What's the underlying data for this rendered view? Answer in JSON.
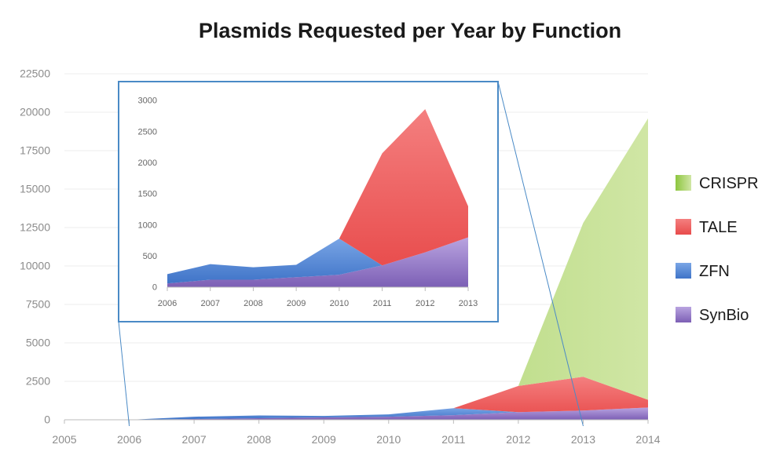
{
  "chart_data": [
    {
      "type": "area",
      "title": "Plasmids Requested per Year by Function",
      "stacked": true,
      "x": [
        "2005",
        "2006",
        "2007",
        "2008",
        "2009",
        "2010",
        "2011",
        "2012",
        "2013",
        "2014"
      ],
      "ylim": [
        0,
        22500
      ],
      "yticks": [
        "0",
        "2500",
        "5000",
        "7500",
        "10000",
        "12500",
        "15000",
        "17500",
        "20000",
        "22500"
      ],
      "legend_position": "right",
      "series": [
        {
          "name": "SynBio",
          "color": "#9b7fc8",
          "values": [
            0,
            0,
            50,
            100,
            150,
            200,
            300,
            500,
            600,
            800
          ]
        },
        {
          "name": "ZFN",
          "color": "#5b8fd8",
          "values": [
            0,
            0,
            150,
            180,
            100,
            150,
            450,
            0,
            0,
            0
          ]
        },
        {
          "name": "TALE",
          "color": "#ef6b6b",
          "values": [
            0,
            0,
            0,
            0,
            0,
            0,
            0,
            1700,
            2200,
            500
          ]
        },
        {
          "name": "CRISPR",
          "color": "#a6cf5a",
          "values": [
            0,
            0,
            0,
            0,
            0,
            0,
            0,
            0,
            10000,
            18300
          ]
        }
      ]
    },
    {
      "type": "area",
      "inset": true,
      "x": [
        "2006",
        "2007",
        "2008",
        "2009",
        "2010",
        "2011",
        "2012",
        "2013"
      ],
      "ylim": [
        0,
        3000
      ],
      "yticks": [
        "0",
        "500",
        "1000",
        "1500",
        "2000",
        "2500",
        "3000"
      ],
      "series": [
        {
          "name": "SynBio",
          "values": [
            60,
            120,
            120,
            160,
            200,
            350,
            560,
            800
          ]
        },
        {
          "name": "ZFN",
          "values": [
            150,
            250,
            200,
            200,
            580,
            0,
            0,
            0
          ]
        },
        {
          "name": "TALE",
          "values": [
            0,
            0,
            0,
            0,
            0,
            1800,
            2300,
            500
          ]
        },
        {
          "name": "CRISPR",
          "values": [
            0,
            0,
            0,
            0,
            0,
            0,
            0,
            0
          ]
        }
      ]
    }
  ]
}
